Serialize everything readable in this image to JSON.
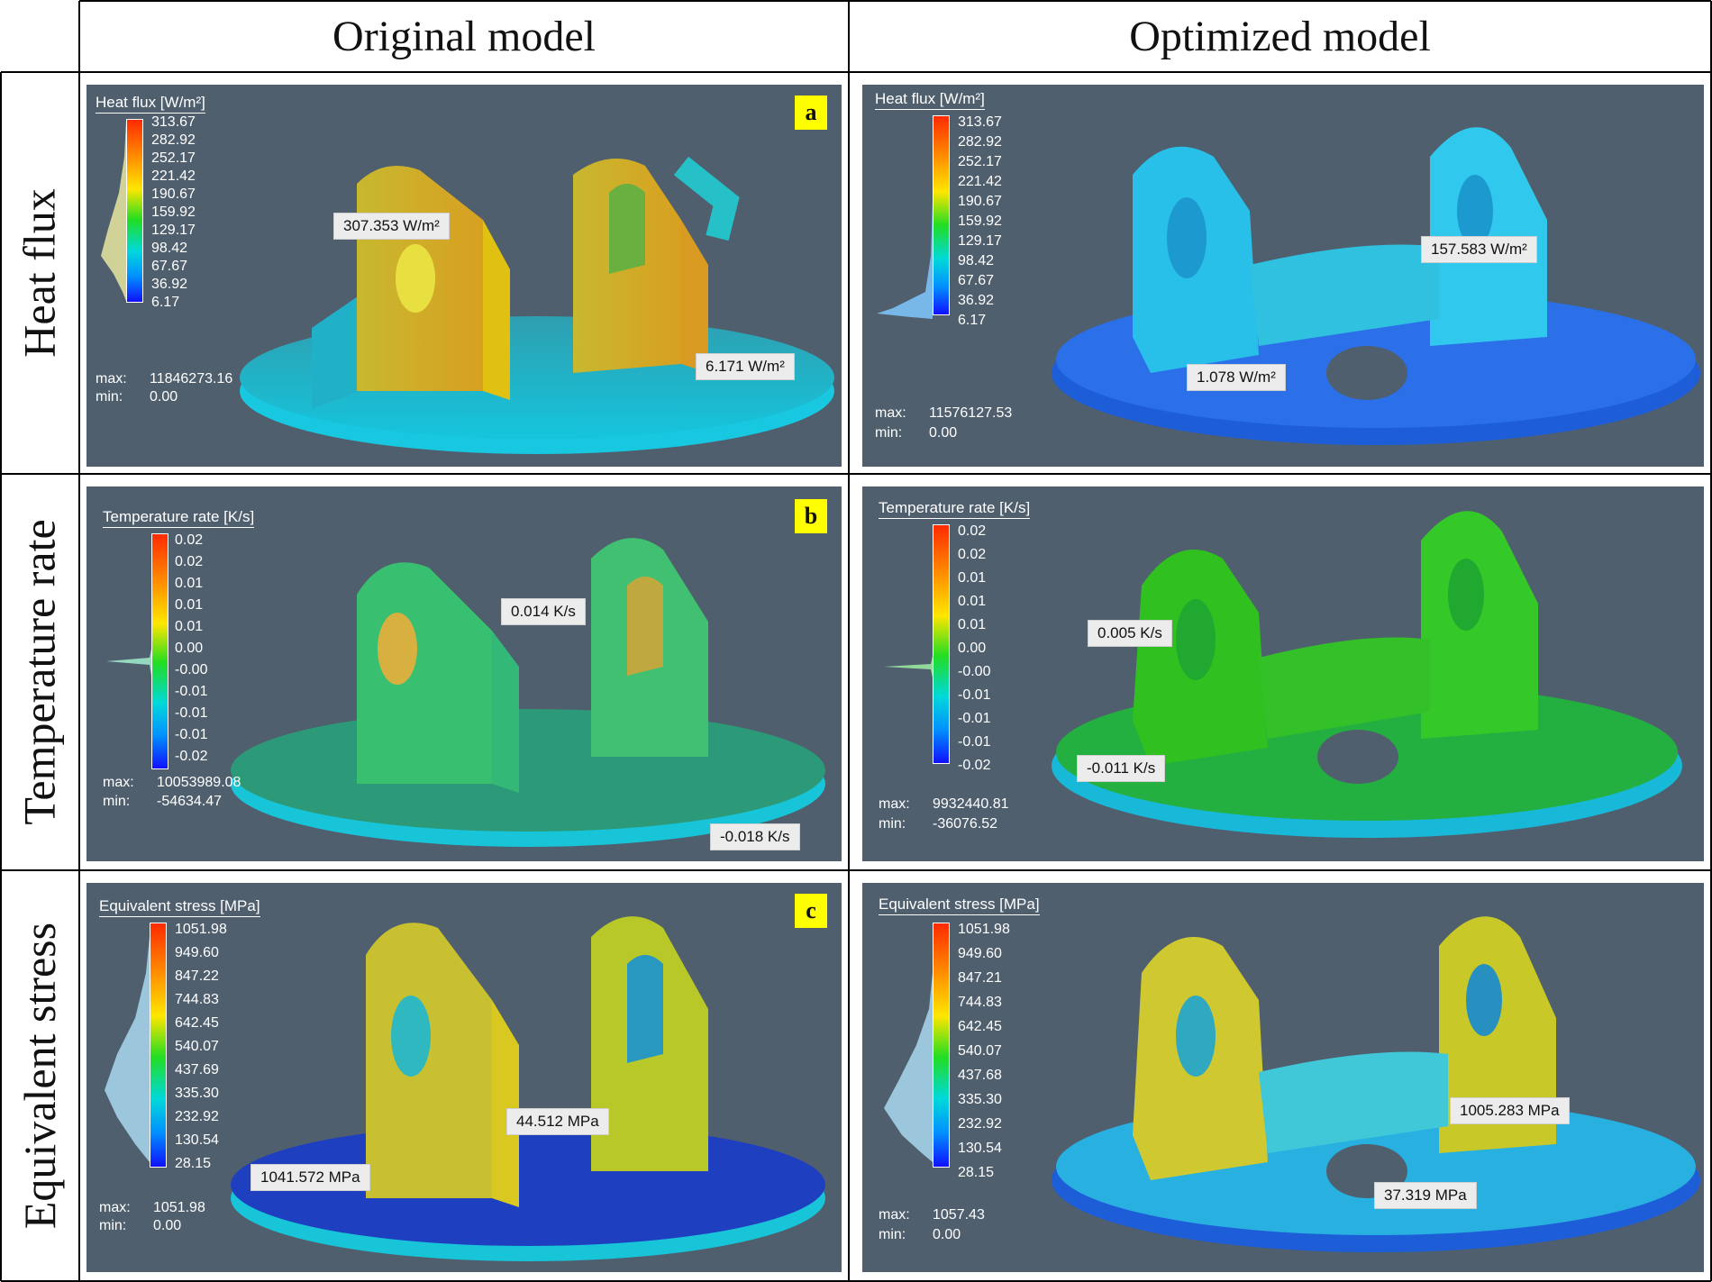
{
  "columns": [
    "Original model",
    "Optimized model"
  ],
  "rows": [
    "Heat flux",
    "Temperature rate",
    "Equivalent stress"
  ],
  "panels": {
    "a_orig": {
      "badge": "a",
      "legend_title": "Heat flux [W/m²]",
      "ticks": [
        "313.67",
        "282.92",
        "252.17",
        "221.42",
        "190.67",
        "159.92",
        "129.17",
        "98.42",
        "67.67",
        "36.92",
        "6.17"
      ],
      "max_label": "max:",
      "max_value": "11846273.16",
      "min_label": "min:",
      "min_value": "0.00",
      "labels": [
        "307.353 W/m²",
        "6.171 W/m²"
      ]
    },
    "a_opt": {
      "legend_title": "Heat flux [W/m²]",
      "ticks": [
        "313.67",
        "282.92",
        "252.17",
        "221.42",
        "190.67",
        "159.92",
        "129.17",
        "98.42",
        "67.67",
        "36.92",
        "6.17"
      ],
      "max_label": "max:",
      "max_value": "11576127.53",
      "min_label": "min:",
      "min_value": "0.00",
      "labels": [
        "157.583 W/m²",
        "1.078 W/m²"
      ]
    },
    "b_orig": {
      "badge": "b",
      "legend_title": "Temperature rate [K/s]",
      "ticks": [
        "0.02",
        "0.02",
        "0.01",
        "0.01",
        "0.01",
        "0.00",
        "-0.00",
        "-0.01",
        "-0.01",
        "-0.01",
        "-0.02"
      ],
      "max_label": "max:",
      "max_value": "10053989.08",
      "min_label": "min:",
      "min_value": "-54634.47",
      "labels": [
        "0.014 K/s",
        "-0.018 K/s"
      ]
    },
    "b_opt": {
      "legend_title": "Temperature rate [K/s]",
      "ticks": [
        "0.02",
        "0.02",
        "0.01",
        "0.01",
        "0.01",
        "0.00",
        "-0.00",
        "-0.01",
        "-0.01",
        "-0.01",
        "-0.02"
      ],
      "max_label": "max:",
      "max_value": "9932440.81",
      "min_label": "min:",
      "min_value": "-36076.52",
      "labels": [
        "0.005 K/s",
        "-0.011 K/s"
      ]
    },
    "c_orig": {
      "badge": "c",
      "legend_title": "Equivalent stress [MPa]",
      "ticks": [
        "1051.98",
        "949.60",
        "847.22",
        "744.83",
        "642.45",
        "540.07",
        "437.69",
        "335.30",
        "232.92",
        "130.54",
        "28.15"
      ],
      "max_label": "max:",
      "max_value": "1051.98",
      "min_label": "min:",
      "min_value": "0.00",
      "labels": [
        "44.512 MPa",
        "1041.572 MPa"
      ]
    },
    "c_opt": {
      "legend_title": "Equivalent stress [MPa]",
      "ticks": [
        "1051.98",
        "949.60",
        "847.21",
        "744.83",
        "642.45",
        "540.07",
        "437.68",
        "335.30",
        "232.92",
        "130.54",
        "28.15"
      ],
      "max_label": "max:",
      "max_value": "1057.43",
      "min_label": "min:",
      "min_value": "0.00",
      "labels": [
        "1005.283 MPa",
        "37.319 MPa"
      ]
    }
  },
  "colors": {
    "background": "#4f5f6e",
    "badge": "#ffff00",
    "label_box": "#ececec",
    "colormap": [
      "#ff2a00",
      "#ff8c00",
      "#ffe600",
      "#22dd22",
      "#00d9d9",
      "#0090ff",
      "#1010ff"
    ]
  }
}
